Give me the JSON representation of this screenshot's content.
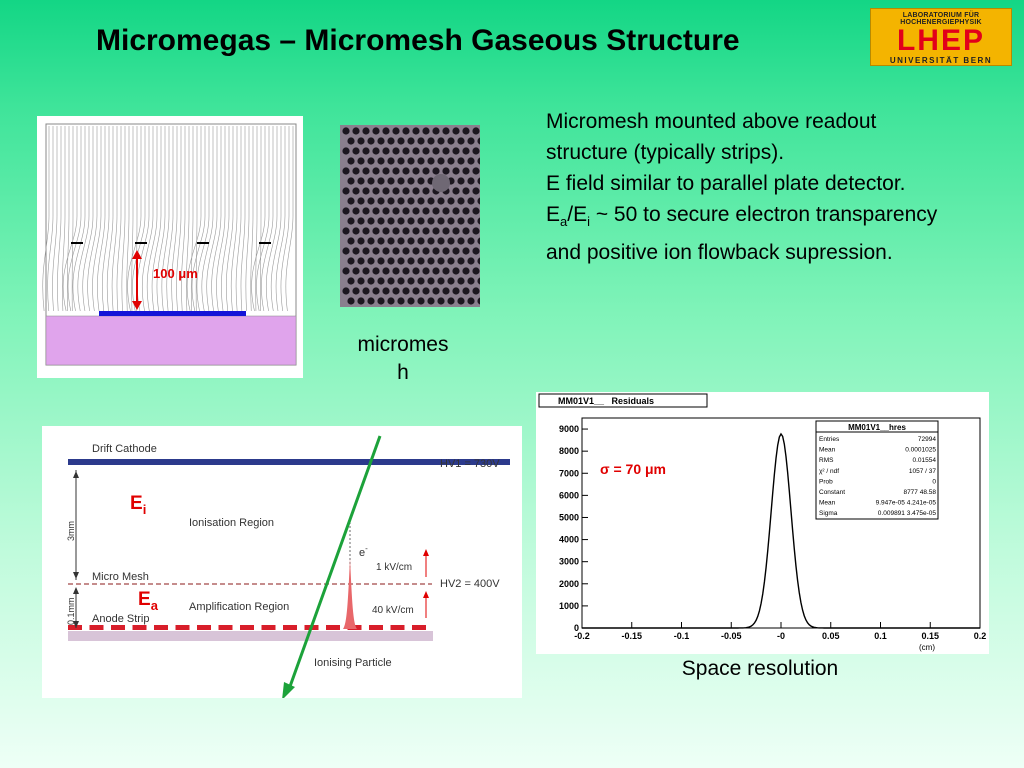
{
  "slide": {
    "title": "Micromegas – Micromesh Gaseous Structure",
    "logo": {
      "top": "LABORATORIUM FÜR HOCHENERGIEPHYSIK",
      "main": "LHEP",
      "bottom": "UNIVERSITÄT BERN",
      "colors": {
        "background": "#f4b400",
        "text": "#e2001a"
      }
    },
    "bullets": {
      "line1": "Micromesh mounted above readout",
      "line2": "structure (typically strips).",
      "line3": "E field similar to parallel plate detector.",
      "line4_a": "E",
      "line4_a_sub": "a",
      "line4_b": "/E",
      "line4_b_sub": "i",
      "line4_c": " ~ 50 to secure electron transparency",
      "line5": "and positive ion flowback supression."
    },
    "field_figure": {
      "gap_label": "100 μm"
    },
    "mesh_photo": {
      "label_line1": "micromes",
      "label_line2": "h"
    },
    "schematic": {
      "drift_cathode": "Drift Cathode",
      "hv1": "HV1 = 730V",
      "ei_main": "E",
      "ei_sub": "i",
      "ionisation_region": "Ionisation Region",
      "gap_3mm": "3mm",
      "electron": "e",
      "electron_sup": "-",
      "field_1kv": "1 kV/cm",
      "micro_mesh": "Micro Mesh",
      "hv2": "HV2 = 400V",
      "ea_main": "E",
      "ea_sub": "a",
      "amplification_region": "Amplification Region",
      "gap_01mm": "0.1mm",
      "field_40kv": "40 kV/cm",
      "anode_strip": "Anode Strip",
      "ionising_particle": "Ionising Particle"
    },
    "histogram": {
      "title_box": "MM01V1__   Residuals",
      "sigma_label": "σ = 70 μm",
      "stats": {
        "title": "MM01V1__hres",
        "rows": [
          {
            "k": "Entries",
            "v": "72994"
          },
          {
            "k": "Mean",
            "v": "0.0001025"
          },
          {
            "k": "RMS",
            "v": "0.01554"
          },
          {
            "k": "χ² / ndf",
            "v": "1057  /  37"
          },
          {
            "k": "Prob",
            "v": "0"
          },
          {
            "k": "Constant",
            "v": "8777  48.58"
          },
          {
            "k": "Mean",
            "v": "9.947e-05   4.241e-05"
          },
          {
            "k": "Sigma",
            "v": "0.009891  3.475e-05"
          }
        ]
      },
      "x_unit": "(cm)"
    },
    "space_resolution_label": "Space resolution"
  },
  "chart_data": {
    "type": "bar",
    "title": "MM01V1__   Residuals",
    "xlabel": "(cm)",
    "ylabel": "",
    "xlim": [
      -0.2,
      0.2
    ],
    "ylim": [
      0,
      9500
    ],
    "xticks": [
      -0.2,
      -0.15,
      -0.1,
      -0.05,
      0,
      0.05,
      0.1,
      0.15,
      0.2
    ],
    "xtick_labels": [
      "-0.2",
      "-0.15",
      "-0.1",
      "-0.05",
      "-0",
      "0.05",
      "0.1",
      "0.15",
      "0.2"
    ],
    "yticks": [
      0,
      1000,
      2000,
      3000,
      4000,
      5000,
      6000,
      7000,
      8000,
      9000
    ],
    "ytick_labels": [
      "0",
      "1000",
      "2000",
      "3000",
      "4000",
      "5000",
      "6000",
      "7000",
      "8000",
      "9000"
    ],
    "fit": {
      "type": "gaussian",
      "constant": 8777,
      "mean": 9.95e-05,
      "sigma": 0.009891
    },
    "grid": false,
    "legend": "top-right"
  }
}
